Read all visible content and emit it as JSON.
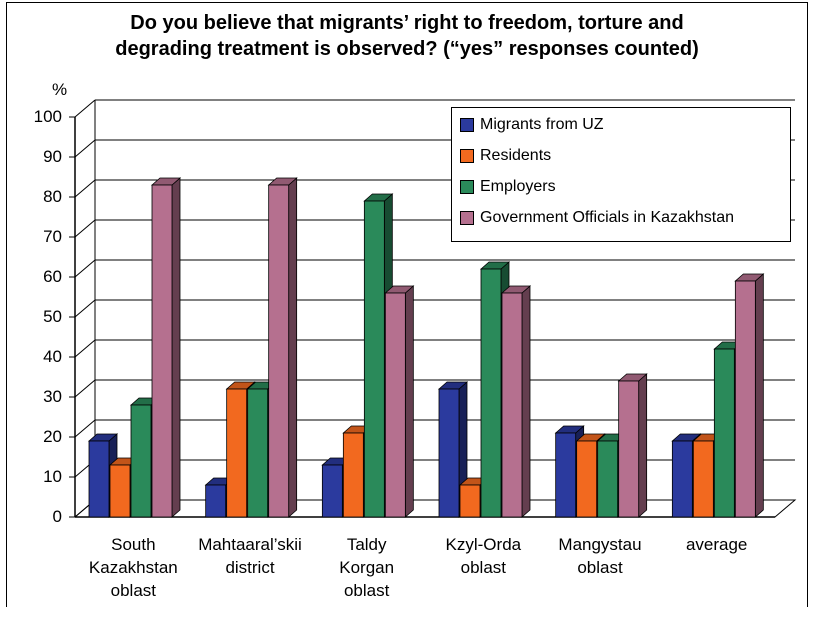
{
  "title_line1": "Do you believe that migrants’ right to freedom, torture and",
  "title_line2": "degrading treatment is observed? (“yes” responses counted)",
  "colors": {
    "uz": "#2b3a9e",
    "residents": "#f2691f",
    "employers": "#2a8a5a",
    "officials": "#b5708f"
  },
  "chart_data": {
    "type": "bar",
    "title": "Do you believe that migrants’ right to freedom, torture and degrading treatment is observed? (“yes” responses counted)",
    "ylabel": "%",
    "ylim": [
      0,
      100
    ],
    "yticks": [
      "0",
      "10",
      "20",
      "30",
      "40",
      "50",
      "60",
      "70",
      "80",
      "90",
      "100"
    ],
    "categories": [
      "South Kazakhstan oblast",
      "Mahtaaral’skii district",
      "Taldy Korgan oblast",
      "Kzyl-Orda oblast",
      "Mangystau oblast",
      "average"
    ],
    "category_lines": [
      [
        "South",
        "Kazakhstan",
        "oblast"
      ],
      [
        "Mahtaaral’skii",
        "district"
      ],
      [
        "Taldy",
        "Korgan",
        "oblast"
      ],
      [
        "Kzyl-Orda",
        "oblast"
      ],
      [
        "Mangystau",
        "oblast"
      ],
      [
        "average"
      ]
    ],
    "series": [
      {
        "name": "Migrants from UZ",
        "values": [
          19,
          8,
          13,
          32,
          21,
          19
        ]
      },
      {
        "name": "Residents",
        "values": [
          13,
          32,
          21,
          8,
          19,
          19
        ]
      },
      {
        "name": "Employers",
        "values": [
          28,
          32,
          79,
          62,
          19,
          42
        ]
      },
      {
        "name": "Government Officials in Kazakhstan",
        "values": [
          83,
          83,
          56,
          56,
          34,
          59
        ]
      }
    ],
    "grid": true,
    "legend_position": "top-right"
  }
}
